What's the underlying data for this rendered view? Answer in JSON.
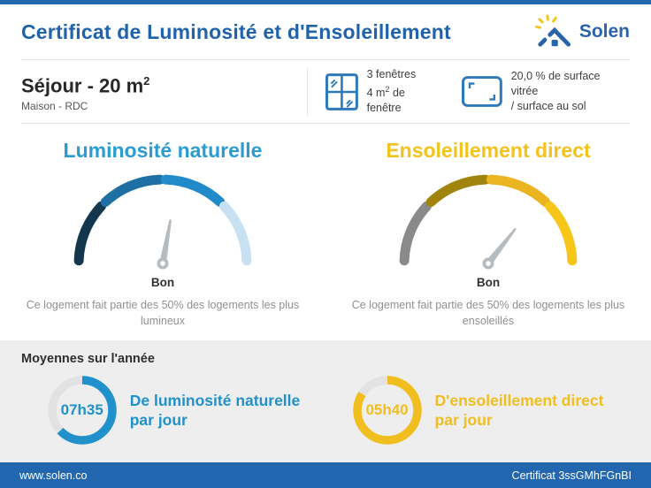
{
  "header": {
    "title": "Certificat de Luminosité et d'Ensoleillement",
    "brand": "Solen"
  },
  "room": {
    "title_prefix": "Séjour - 20 m",
    "title_sup": "2",
    "subtitle": "Maison - RDC"
  },
  "window_info": {
    "line1": "3 fenêtres",
    "line2_prefix": "4 m",
    "line2_sup": "2",
    "line2_suffix": " de fenêtre"
  },
  "surface_info": {
    "line1": "20,0 % de surface vitrée",
    "line2": "/ surface au sol"
  },
  "gauges": {
    "left": {
      "title": "Luminosité naturelle",
      "title_color": "#2B9CD0",
      "rating": "Bon",
      "desc_line1": "Ce logement fait partie des 50% des logements les plus",
      "desc_line2": "lumineux",
      "segment_colors": [
        "#15374E",
        "#1D6FA4",
        "#218BC9",
        "#C8E1F2"
      ],
      "needle_angle_deg": 10
    },
    "right": {
      "title": "Ensoleillement direct",
      "title_color": "#F2C31C",
      "rating": "Bon",
      "desc_line1": "Ce logement fait partie des 50% des logements les plus",
      "desc_line2": "ensoleillés",
      "segment_colors": [
        "#8A8A8A",
        "#A1840E",
        "#EAB520",
        "#F6C71A"
      ],
      "needle_angle_deg": 38
    }
  },
  "averages": {
    "section_title": "Moyennes sur l'année",
    "left": {
      "value": "07h35",
      "label_line1": "De luminosité naturelle",
      "label_line2": "par jour",
      "percent": 63,
      "color": "#2191CB"
    },
    "right": {
      "value": "05h40",
      "label_line1": "D'ensoleillement direct",
      "label_line2": "par jour",
      "percent": 84,
      "color": "#F0BE1E"
    }
  },
  "footer": {
    "website": "www.solen.co",
    "certificate": "Certificat 3ssGMhFGnBI"
  },
  "icons": {
    "logo": "sun-house-icon",
    "windows": "window-panes-icon",
    "surface": "floor-area-icon"
  },
  "colors": {
    "accent_blue": "#2166AE",
    "title_blue": "#2063AC",
    "needle_gray": "#B6BBBF",
    "ring_track": "#E2E2E4"
  }
}
